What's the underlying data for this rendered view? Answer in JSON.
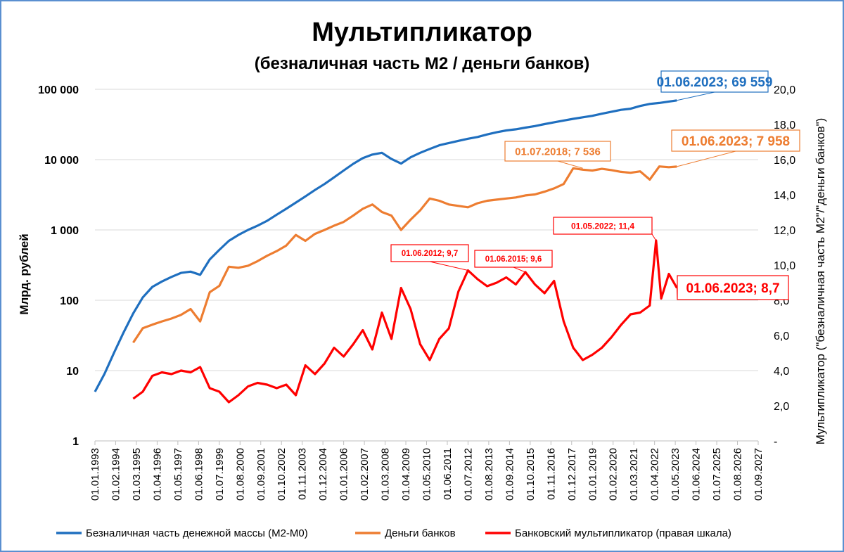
{
  "chart_data": {
    "type": "line",
    "title": "Мультипликатор",
    "subtitle": "(безналичная часть М2 / деньги банков)",
    "ylabel_left": "Млрд. рублей",
    "ylabel_right": "Мультипликатор (\"безналичная часть М2\"/\"деньги банков\")",
    "y_left_scale": "log",
    "y_left_range": [
      1,
      100000
    ],
    "y_left_ticks": [
      "1",
      "10",
      "100",
      "1 000",
      "10 000",
      "100 000"
    ],
    "y_right_range": [
      0,
      20
    ],
    "y_right_ticks": [
      "-",
      "2,0",
      "4,0",
      "6,0",
      "8,0",
      "10,0",
      "12,0",
      "14,0",
      "16,0",
      "18,0",
      "20,0"
    ],
    "x_ticks": [
      "01.01.1993",
      "01.02.1994",
      "01.03.1995",
      "01.04.1996",
      "01.05.1997",
      "01.06.1998",
      "01.07.1999",
      "01.08.2000",
      "01.09.2001",
      "01.10.2002",
      "01.11.2003",
      "01.12.2004",
      "01.01.2006",
      "01.02.2007",
      "01.03.2008",
      "01.04.2009",
      "01.05.2010",
      "01.06.2011",
      "01.07.2012",
      "01.08.2013",
      "01.09.2014",
      "01.10.2015",
      "01.11.2016",
      "01.12.2017",
      "01.01.2019",
      "01.02.2020",
      "01.03.2021",
      "01.04.2022",
      "01.05.2023",
      "01.06.2024",
      "01.07.2025",
      "01.08.2026",
      "01.09.2027"
    ],
    "grid": true,
    "legend_position": "bottom",
    "series": [
      {
        "name": "Безналичная часть денежной массы (М2-М0)",
        "axis": "left",
        "color": "#1f6fbf",
        "x": [
          1993.0,
          1993.5,
          1994.0,
          1994.5,
          1995.0,
          1995.5,
          1996.0,
          1996.5,
          1997.0,
          1997.5,
          1998.0,
          1998.5,
          1999.0,
          1999.5,
          2000.0,
          2000.5,
          2001.0,
          2001.5,
          2002.0,
          2002.5,
          2003.0,
          2003.5,
          2004.0,
          2004.5,
          2005.0,
          2005.5,
          2006.0,
          2006.5,
          2007.0,
          2007.5,
          2008.0,
          2008.5,
          2009.0,
          2009.5,
          2010.0,
          2010.5,
          2011.0,
          2011.5,
          2012.0,
          2012.5,
          2013.0,
          2013.5,
          2014.0,
          2014.5,
          2015.0,
          2015.5,
          2016.0,
          2016.5,
          2017.0,
          2017.5,
          2018.0,
          2018.5,
          2019.0,
          2019.5,
          2020.0,
          2020.5,
          2021.0,
          2021.5,
          2022.0,
          2022.5,
          2023.0,
          2023.42
        ],
        "y": [
          5,
          9,
          18,
          35,
          65,
          110,
          155,
          185,
          215,
          245,
          255,
          230,
          380,
          520,
          700,
          850,
          1000,
          1150,
          1350,
          1650,
          2000,
          2450,
          3000,
          3700,
          4500,
          5600,
          7000,
          8700,
          10500,
          11800,
          12500,
          10200,
          8800,
          10800,
          12500,
          14200,
          16000,
          17200,
          18500,
          19800,
          21000,
          22800,
          24500,
          26000,
          27000,
          28500,
          30000,
          32000,
          34000,
          36000,
          38000,
          40000,
          42000,
          45000,
          48000,
          51000,
          53000,
          58000,
          62000,
          64000,
          67000,
          69559
        ]
      },
      {
        "name": "Деньги банков",
        "axis": "left",
        "color": "#ed7d31",
        "x": [
          1995.0,
          1995.5,
          1996.0,
          1996.5,
          1997.0,
          1997.5,
          1998.0,
          1998.5,
          1999.0,
          1999.5,
          2000.0,
          2000.5,
          2001.0,
          2001.5,
          2002.0,
          2002.5,
          2003.0,
          2003.5,
          2004.0,
          2004.5,
          2005.0,
          2005.5,
          2006.0,
          2006.5,
          2007.0,
          2007.5,
          2008.0,
          2008.5,
          2009.0,
          2009.5,
          2010.0,
          2010.5,
          2011.0,
          2011.5,
          2012.0,
          2012.5,
          2013.0,
          2013.5,
          2014.0,
          2014.5,
          2015.0,
          2015.5,
          2016.0,
          2016.5,
          2017.0,
          2017.5,
          2018.0,
          2018.5,
          2019.0,
          2019.5,
          2020.0,
          2020.5,
          2021.0,
          2021.5,
          2022.0,
          2022.5,
          2023.0,
          2023.42
        ],
        "y": [
          25,
          40,
          45,
          50,
          55,
          62,
          75,
          50,
          130,
          160,
          300,
          290,
          310,
          360,
          430,
          500,
          600,
          850,
          700,
          880,
          1000,
          1150,
          1300,
          1600,
          2000,
          2300,
          1800,
          1600,
          1000,
          1400,
          1900,
          2800,
          2600,
          2300,
          2200,
          2100,
          2400,
          2600,
          2700,
          2800,
          2900,
          3100,
          3200,
          3500,
          3900,
          4500,
          7536,
          7200,
          7000,
          7400,
          7100,
          6700,
          6500,
          6800,
          5200,
          8000,
          7800,
          7958
        ]
      },
      {
        "name": "Банковский мультипликатор (правая шкала)",
        "axis": "right",
        "color": "#ff0000",
        "x": [
          1995.0,
          1995.5,
          1996.0,
          1996.5,
          1997.0,
          1997.5,
          1998.0,
          1998.5,
          1999.0,
          1999.5,
          2000.0,
          2000.5,
          2001.0,
          2001.5,
          2002.0,
          2002.5,
          2003.0,
          2003.5,
          2004.0,
          2004.5,
          2005.0,
          2005.5,
          2006.0,
          2006.5,
          2007.0,
          2007.5,
          2008.0,
          2008.5,
          2009.0,
          2009.5,
          2010.0,
          2010.5,
          2011.0,
          2011.5,
          2012.0,
          2012.5,
          2013.0,
          2013.5,
          2014.0,
          2014.5,
          2015.0,
          2015.5,
          2016.0,
          2016.5,
          2017.0,
          2017.5,
          2018.0,
          2018.5,
          2019.0,
          2019.5,
          2020.0,
          2020.5,
          2021.0,
          2021.5,
          2022.0,
          2022.33,
          2022.6,
          2023.0,
          2023.42
        ],
        "y": [
          2.4,
          2.8,
          3.7,
          3.9,
          3.8,
          4.0,
          3.9,
          4.2,
          3.0,
          2.8,
          2.2,
          2.6,
          3.1,
          3.3,
          3.2,
          3.0,
          3.2,
          2.6,
          4.3,
          3.8,
          4.4,
          5.3,
          4.8,
          5.5,
          6.3,
          5.2,
          7.3,
          5.8,
          8.7,
          7.5,
          5.5,
          4.6,
          5.8,
          6.4,
          8.5,
          9.7,
          9.2,
          8.8,
          9.0,
          9.3,
          8.9,
          9.6,
          8.9,
          8.4,
          9.1,
          6.8,
          5.3,
          4.6,
          4.9,
          5.3,
          5.9,
          6.6,
          7.2,
          7.3,
          7.7,
          11.4,
          8.1,
          9.5,
          8.7
        ]
      }
    ],
    "annotations": [
      {
        "text": "01.06.2023; 69 559",
        "color": "#1f6fbf",
        "series": 0
      },
      {
        "text": "01.07.2018; 7 536",
        "color": "#ed7d31",
        "series": 1
      },
      {
        "text": "01.06.2023; 7 958",
        "color": "#ed7d31",
        "series": 1
      },
      {
        "text": "01.06.2012;  9,7",
        "color": "#ff0000",
        "series": 2
      },
      {
        "text": "01.06.2015;  9,6",
        "color": "#ff0000",
        "series": 2
      },
      {
        "text": "01.05.2022;  11,4",
        "color": "#ff0000",
        "series": 2
      },
      {
        "text": "01.06.2023;   8,7",
        "color": "#ff0000",
        "series": 2
      }
    ]
  }
}
